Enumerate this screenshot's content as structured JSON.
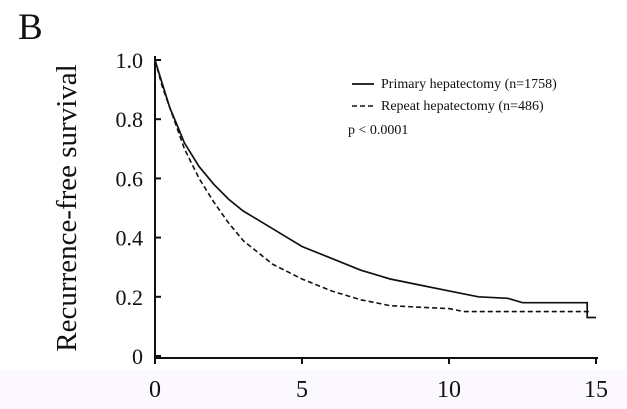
{
  "panel_label": "B",
  "chart_data": {
    "type": "line",
    "title": "",
    "xlabel": "",
    "ylabel": "Recurrence-free survival",
    "xlim": [
      0,
      15
    ],
    "ylim": [
      0,
      1.0
    ],
    "x_ticks": [
      0,
      5,
      10,
      15
    ],
    "x_tick_labels": [
      "0",
      "5",
      "10",
      "15"
    ],
    "y_ticks": [
      0,
      0.2,
      0.4,
      0.6,
      0.8,
      1.0
    ],
    "y_tick_labels": [
      "0",
      "0.2",
      "0.4",
      "0.6",
      "0.8",
      "1.0"
    ],
    "grid": false,
    "legend_position": "top-right",
    "annotation": "p < 0.0001",
    "series": [
      {
        "name": "Primary hepatectomy (n=1758)",
        "style": "solid",
        "x": [
          0,
          0.25,
          0.5,
          0.75,
          1,
          1.5,
          2,
          2.5,
          3,
          3.5,
          4,
          5,
          6,
          7,
          8,
          9,
          10,
          11,
          12,
          12.5,
          13,
          14,
          14.7,
          14.7,
          15
        ],
        "y": [
          1.0,
          0.92,
          0.84,
          0.78,
          0.72,
          0.64,
          0.58,
          0.53,
          0.49,
          0.46,
          0.43,
          0.37,
          0.33,
          0.29,
          0.26,
          0.24,
          0.22,
          0.2,
          0.195,
          0.18,
          0.18,
          0.18,
          0.18,
          0.13,
          0.13
        ]
      },
      {
        "name": "Repeat hepatectomy (n=486)",
        "style": "dashed",
        "x": [
          0,
          0.25,
          0.5,
          0.75,
          1,
          1.5,
          2,
          2.5,
          3,
          3.5,
          4,
          5,
          6,
          7,
          7.5,
          8,
          9,
          10,
          10.5,
          11,
          12,
          13,
          14,
          14.8
        ],
        "y": [
          1.0,
          0.91,
          0.84,
          0.77,
          0.7,
          0.6,
          0.52,
          0.45,
          0.39,
          0.35,
          0.31,
          0.26,
          0.22,
          0.19,
          0.18,
          0.17,
          0.165,
          0.16,
          0.15,
          0.15,
          0.15,
          0.15,
          0.15,
          0.15
        ]
      }
    ]
  }
}
